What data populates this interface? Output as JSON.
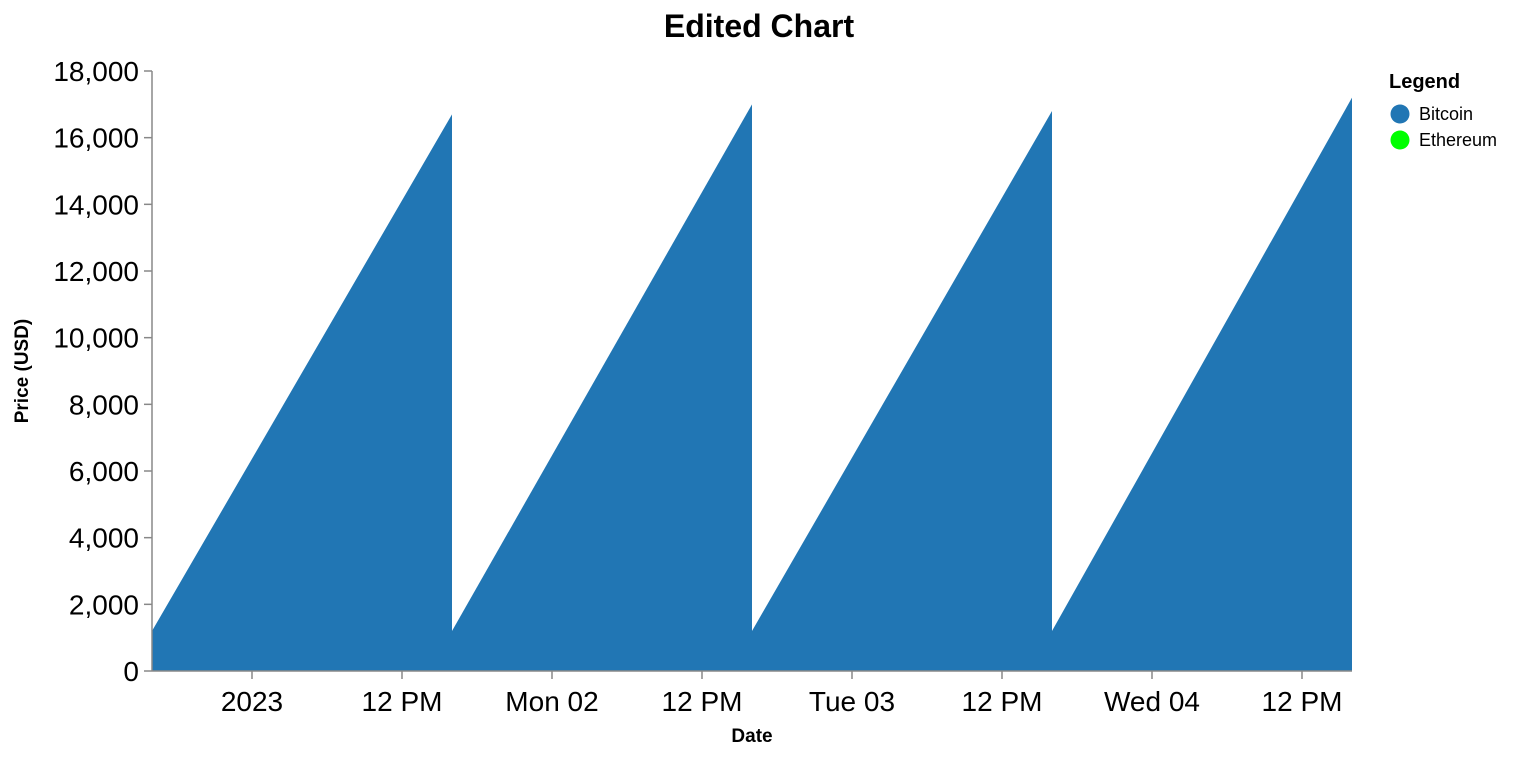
{
  "chart_data": {
    "type": "area",
    "title": "Edited Chart",
    "xlabel": "Date",
    "ylabel": "Price (USD)",
    "ylim": [
      0,
      18000
    ],
    "y_ticks": [
      0,
      2000,
      4000,
      6000,
      8000,
      10000,
      12000,
      14000,
      16000,
      18000
    ],
    "y_tick_labels": [
      "0",
      "2,000",
      "4,000",
      "6,000",
      "8,000",
      "10,000",
      "12,000",
      "14,000",
      "16,000",
      "18,000"
    ],
    "xlim": [
      "2023-01-01T00:00",
      "2023-01-05T00:00"
    ],
    "x_ticks": [
      "2023-01-01T08:00",
      "2023-01-01T20:00",
      "2023-01-02T08:00",
      "2023-01-02T20:00",
      "2023-01-03T08:00",
      "2023-01-03T20:00",
      "2023-01-04T08:00",
      "2023-01-04T20:00"
    ],
    "x_tick_labels": [
      "2023",
      "12 PM",
      "Mon 02",
      "12 PM",
      "Tue 03",
      "12 PM",
      "Wed 04",
      "12 PM"
    ],
    "grid": false,
    "legend": {
      "title": "Legend",
      "position": "top-right",
      "entries": [
        {
          "label": "Bitcoin",
          "color": "#2176B4"
        },
        {
          "label": "Ethereum",
          "color": "#00FF00"
        }
      ]
    },
    "series": [
      {
        "name": "Bitcoin",
        "color": "#2176B4",
        "segments": [
          {
            "x": [
              "2023-01-01T00:00",
              "2023-01-02T00:00"
            ],
            "y": [
              1200,
              16700
            ]
          },
          {
            "x": [
              "2023-01-02T00:00",
              "2023-01-03T00:00"
            ],
            "y": [
              1200,
              17000
            ]
          },
          {
            "x": [
              "2023-01-03T00:00",
              "2023-01-04T00:00"
            ],
            "y": [
              1200,
              16800
            ]
          },
          {
            "x": [
              "2023-01-04T00:00",
              "2023-01-05T00:00"
            ],
            "y": [
              1200,
              17200
            ]
          }
        ]
      }
    ]
  }
}
